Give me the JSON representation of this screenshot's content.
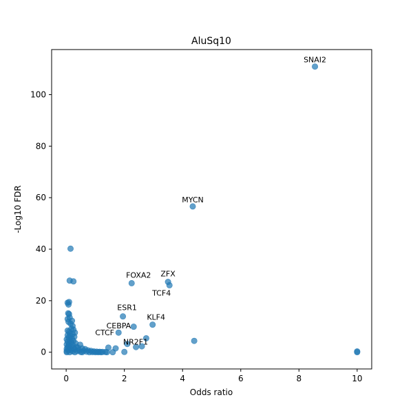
{
  "chart_data": {
    "type": "scatter",
    "title": "AluSq10",
    "xlabel": "Odds ratio",
    "ylabel": "-Log10 FDR",
    "xlim": [
      -0.5,
      10.5
    ],
    "ylim": [
      -6.5,
      117.5
    ],
    "xticks": [
      0,
      2,
      4,
      6,
      8,
      10
    ],
    "yticks": [
      0,
      20,
      40,
      60,
      80,
      100
    ],
    "grid": false,
    "color": "#1f77b4",
    "points": [
      {
        "x": 8.55,
        "y": 110.9
      },
      {
        "x": 4.35,
        "y": 56.6
      },
      {
        "x": 0.15,
        "y": 40.2
      },
      {
        "x": 3.5,
        "y": 27.3
      },
      {
        "x": 3.55,
        "y": 26.0
      },
      {
        "x": 2.25,
        "y": 26.8
      },
      {
        "x": 0.12,
        "y": 27.8
      },
      {
        "x": 0.25,
        "y": 27.5
      },
      {
        "x": 1.95,
        "y": 13.9
      },
      {
        "x": 2.97,
        "y": 10.7
      },
      {
        "x": 2.32,
        "y": 9.9
      },
      {
        "x": 1.8,
        "y": 7.6
      },
      {
        "x": 2.75,
        "y": 5.4
      },
      {
        "x": 4.4,
        "y": 4.4
      },
      {
        "x": 2.1,
        "y": 3.2
      },
      {
        "x": 2.4,
        "y": 2.0
      },
      {
        "x": 2.6,
        "y": 2.3
      },
      {
        "x": 1.45,
        "y": 1.8
      },
      {
        "x": 1.7,
        "y": 1.5
      },
      {
        "x": 2.0,
        "y": 0.1
      },
      {
        "x": 10.0,
        "y": 0.3
      },
      {
        "x": 10.0,
        "y": 0.0
      },
      {
        "x": 0.05,
        "y": 19.2
      },
      {
        "x": 0.08,
        "y": 18.5
      },
      {
        "x": 0.1,
        "y": 19.5
      },
      {
        "x": 0.07,
        "y": 15.1
      },
      {
        "x": 0.1,
        "y": 14.8
      },
      {
        "x": 0.05,
        "y": 12.9
      },
      {
        "x": 0.12,
        "y": 13.5
      },
      {
        "x": 0.08,
        "y": 11.8
      },
      {
        "x": 0.2,
        "y": 12.2
      },
      {
        "x": 0.15,
        "y": 11.1
      },
      {
        "x": 0.22,
        "y": 10.2
      },
      {
        "x": 0.18,
        "y": 9.1
      },
      {
        "x": 0.25,
        "y": 8.8
      },
      {
        "x": 0.05,
        "y": 8.4
      },
      {
        "x": 0.1,
        "y": 8.0
      },
      {
        "x": 0.3,
        "y": 7.6
      },
      {
        "x": 0.12,
        "y": 7.2
      },
      {
        "x": 0.22,
        "y": 7.0
      },
      {
        "x": 0.05,
        "y": 6.6
      },
      {
        "x": 0.15,
        "y": 6.2
      },
      {
        "x": 0.28,
        "y": 6.0
      },
      {
        "x": 0.08,
        "y": 5.7
      },
      {
        "x": 0.2,
        "y": 5.2
      },
      {
        "x": 0.02,
        "y": 5.0
      },
      {
        "x": 0.12,
        "y": 4.6
      },
      {
        "x": 0.25,
        "y": 4.4
      },
      {
        "x": 0.05,
        "y": 4.1
      },
      {
        "x": 0.18,
        "y": 3.8
      },
      {
        "x": 0.32,
        "y": 3.5
      },
      {
        "x": 0.1,
        "y": 3.2
      },
      {
        "x": 0.02,
        "y": 3.0
      },
      {
        "x": 0.22,
        "y": 2.8
      },
      {
        "x": 0.48,
        "y": 2.9
      },
      {
        "x": 0.08,
        "y": 2.5
      },
      {
        "x": 0.15,
        "y": 2.2
      },
      {
        "x": 0.35,
        "y": 2.1
      },
      {
        "x": 0.05,
        "y": 1.9
      },
      {
        "x": 0.4,
        "y": 1.8
      },
      {
        "x": 0.25,
        "y": 1.6
      },
      {
        "x": 0.12,
        "y": 1.4
      },
      {
        "x": 0.55,
        "y": 1.5
      },
      {
        "x": 0.02,
        "y": 1.3
      },
      {
        "x": 0.3,
        "y": 1.1
      },
      {
        "x": 0.65,
        "y": 1.2
      },
      {
        "x": 0.18,
        "y": 0.9
      },
      {
        "x": 0.45,
        "y": 0.8
      },
      {
        "x": 0.08,
        "y": 0.7
      },
      {
        "x": 0.75,
        "y": 0.7
      },
      {
        "x": 0.6,
        "y": 0.5
      },
      {
        "x": 0.85,
        "y": 0.5
      },
      {
        "x": 0.02,
        "y": 0.4
      },
      {
        "x": 0.38,
        "y": 0.4
      },
      {
        "x": 0.95,
        "y": 0.3
      },
      {
        "x": 0.22,
        "y": 0.3
      },
      {
        "x": 1.05,
        "y": 0.2
      },
      {
        "x": 0.7,
        "y": 0.2
      },
      {
        "x": 1.15,
        "y": 0.15
      },
      {
        "x": 1.25,
        "y": 0.1
      },
      {
        "x": 1.35,
        "y": 0.1
      },
      {
        "x": 0.5,
        "y": 0.1
      },
      {
        "x": 0.9,
        "y": 0.05
      },
      {
        "x": 0.12,
        "y": 0.0
      },
      {
        "x": 0.02,
        "y": 0.0
      },
      {
        "x": 0.3,
        "y": 0.0
      },
      {
        "x": 0.55,
        "y": 0.0
      },
      {
        "x": 0.8,
        "y": 0.0
      },
      {
        "x": 1.0,
        "y": 0.0
      },
      {
        "x": 1.1,
        "y": 0.0
      },
      {
        "x": 1.2,
        "y": 0.0
      },
      {
        "x": 1.4,
        "y": 0.0
      },
      {
        "x": 1.6,
        "y": 0.0
      }
    ],
    "annotations": [
      {
        "text": "SNAI2",
        "x": 8.55,
        "y": 110.9,
        "anchor": "middle",
        "dx": 0,
        "dy": -6
      },
      {
        "text": "MYCN",
        "x": 4.35,
        "y": 56.6,
        "anchor": "middle",
        "dx": 0,
        "dy": -6
      },
      {
        "text": "ZFX",
        "x": 3.5,
        "y": 27.3,
        "anchor": "middle",
        "dx": 0,
        "dy": -8
      },
      {
        "text": "TCF4",
        "x": 3.55,
        "y": 26.0,
        "anchor": "end",
        "dx": 2,
        "dy": 15
      },
      {
        "text": "FOXA2",
        "x": 2.25,
        "y": 26.8,
        "anchor": "middle",
        "dx": 10,
        "dy": -8
      },
      {
        "text": "ESR1",
        "x": 1.95,
        "y": 13.9,
        "anchor": "middle",
        "dx": 6,
        "dy": -9
      },
      {
        "text": "KLF4",
        "x": 2.97,
        "y": 10.7,
        "anchor": "middle",
        "dx": 5,
        "dy": -7
      },
      {
        "text": "CEBPA",
        "x": 1.8,
        "y": 7.6,
        "anchor": "end",
        "dx": 18,
        "dy": -6
      },
      {
        "text": "CTCF",
        "x": 1.7,
        "y": 1.5,
        "anchor": "end",
        "dx": -2,
        "dy": -19
      },
      {
        "text": "NR2F1",
        "x": 2.1,
        "y": 3.2,
        "anchor": "start",
        "dx": -6,
        "dy": 1
      }
    ]
  }
}
